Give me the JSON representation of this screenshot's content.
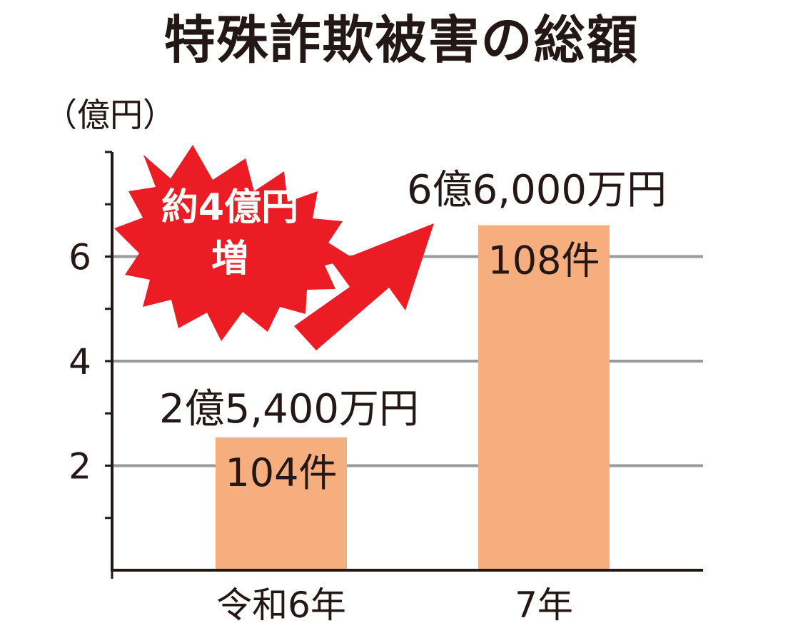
{
  "chart_data": {
    "type": "bar",
    "title": "特殊詐欺被害の総額",
    "unit_label": "（億円）",
    "categories": [
      "令和6年",
      "7年"
    ],
    "values": [
      2.54,
      6.6
    ],
    "value_labels": [
      "2億5,400万円",
      "6億6,000万円"
    ],
    "count_labels": [
      "104件",
      "108件"
    ],
    "y_ticks": [
      2,
      4,
      6
    ],
    "ylim": [
      0,
      8
    ],
    "grid": true,
    "annotation": {
      "line1": "約4億円",
      "line2": "増"
    },
    "colors": {
      "bar": "#F7AE7F",
      "grid": "#9a9a9a",
      "axis": "#231815",
      "accent": "#EC1C24"
    }
  }
}
